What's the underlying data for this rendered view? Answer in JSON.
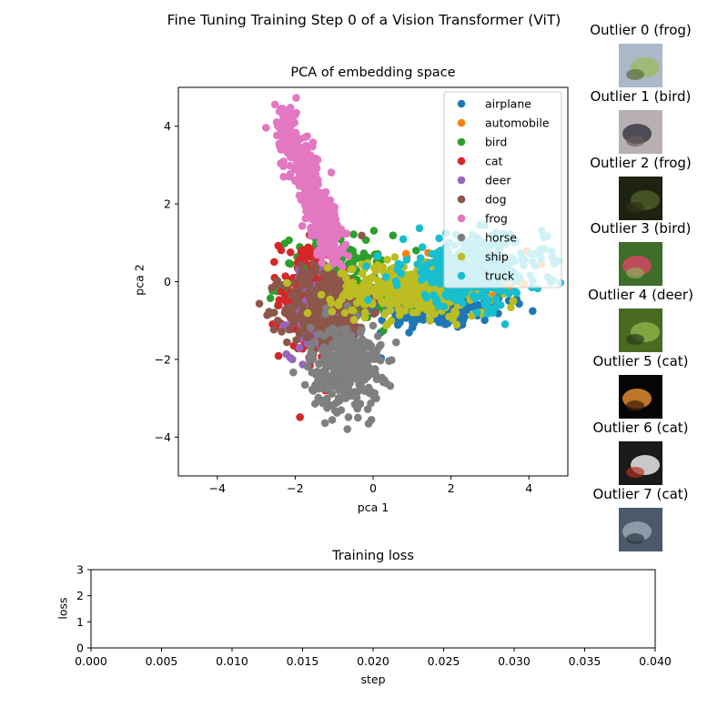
{
  "figure": {
    "suptitle": "Fine Tuning Training Step 0 of a Vision Transformer (ViT)"
  },
  "chart_data": [
    {
      "type": "scatter",
      "title": "PCA of embedding space",
      "xlabel": "pca 1",
      "ylabel": "pca 2",
      "xlim": [
        -5,
        5
      ],
      "ylim": [
        -5,
        5
      ],
      "xticks": [
        -4,
        -2,
        0,
        2,
        4
      ],
      "yticks": [
        -4,
        -2,
        0,
        2,
        4
      ],
      "grid": false,
      "legend_position": "top-right",
      "series": [
        {
          "name": "airplane",
          "color": "#1f77b4",
          "center": [
            1.6,
            -0.5
          ],
          "spread": [
            0.9,
            0.35
          ],
          "points": 320
        },
        {
          "name": "automobile",
          "color": "#ff7f0e",
          "center": [
            2.2,
            0.2
          ],
          "spread": [
            0.9,
            0.3
          ],
          "points": 60
        },
        {
          "name": "bird",
          "color": "#2ca02c",
          "center": [
            -1.0,
            0.0
          ],
          "spread": [
            0.7,
            0.6
          ],
          "points": 180
        },
        {
          "name": "cat",
          "color": "#d62728",
          "center": [
            -1.7,
            -0.4
          ],
          "spread": [
            0.35,
            0.8
          ],
          "points": 170
        },
        {
          "name": "deer",
          "color": "#9467bd",
          "center": [
            -1.6,
            -0.9
          ],
          "spread": [
            0.3,
            0.5
          ],
          "points": 90
        },
        {
          "name": "dog",
          "color": "#8c564b",
          "center": [
            -1.2,
            -0.7
          ],
          "spread": [
            0.55,
            0.55
          ],
          "points": 320
        },
        {
          "name": "frog",
          "color": "#e377c2",
          "center": [
            -2.0,
            2.6
          ],
          "spread": [
            0.5,
            1.4
          ],
          "points": 420
        },
        {
          "name": "horse",
          "color": "#7f7f7f",
          "center": [
            -0.7,
            -2.2
          ],
          "spread": [
            0.45,
            0.55
          ],
          "points": 360
        },
        {
          "name": "ship",
          "color": "#bcbd22",
          "center": [
            1.0,
            -0.2
          ],
          "spread": [
            1.0,
            0.35
          ],
          "points": 420
        },
        {
          "name": "truck",
          "color": "#17becf",
          "center": [
            2.6,
            0.3
          ],
          "spread": [
            0.9,
            0.45
          ],
          "points": 360
        }
      ]
    },
    {
      "type": "line",
      "title": "Training loss",
      "xlabel": "step",
      "ylabel": "loss",
      "xlim": [
        0.0,
        0.04
      ],
      "ylim": [
        0,
        3
      ],
      "xticks": [
        "0.000",
        "0.005",
        "0.010",
        "0.015",
        "0.020",
        "0.025",
        "0.030",
        "0.035",
        "0.040"
      ],
      "yticks": [
        "0",
        "1",
        "2",
        "3"
      ],
      "series": []
    }
  ],
  "outliers": [
    {
      "title": "Outlier 0 (frog)",
      "icon": "frog-thumbnail",
      "colors": [
        "#aab8c8",
        "#9fb86a",
        "#5b6b3a"
      ]
    },
    {
      "title": "Outlier 1 (bird)",
      "icon": "bird-thumbnail",
      "colors": [
        "#b8b0b0",
        "#3a3a48",
        "#6a5c5c"
      ]
    },
    {
      "title": "Outlier 2 (frog)",
      "icon": "frog-thumbnail",
      "colors": [
        "#1e2210",
        "#4d5a26",
        "#2c3218"
      ]
    },
    {
      "title": "Outlier 3 (bird)",
      "icon": "bird-thumbnail",
      "colors": [
        "#3f6d2a",
        "#d24660",
        "#8fae5a"
      ]
    },
    {
      "title": "Outlier 4 (deer)",
      "icon": "deer-thumbnail",
      "colors": [
        "#4a6a22",
        "#8ab048",
        "#2c3a18"
      ]
    },
    {
      "title": "Outlier 5 (cat)",
      "icon": "cat-thumbnail",
      "colors": [
        "#050505",
        "#e08a30",
        "#3a1c08"
      ]
    },
    {
      "title": "Outlier 6 (cat)",
      "icon": "cat-thumbnail",
      "colors": [
        "#1a1a1a",
        "#e8e8e8",
        "#b03020"
      ]
    },
    {
      "title": "Outlier 7 (cat)",
      "icon": "cat-thumbnail",
      "colors": [
        "#4a5a6a",
        "#9aa6b2",
        "#2c3440"
      ]
    }
  ]
}
